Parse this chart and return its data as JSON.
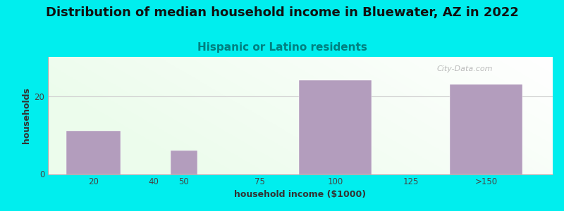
{
  "title": "Distribution of median household income in Bluewater, AZ in 2022",
  "subtitle": "Hispanic or Latino residents",
  "xlabel": "household income ($1000)",
  "ylabel": "households",
  "background_color": "#00EEEE",
  "bar_color": "#b39dbd",
  "categories": [
    "20",
    "40",
    "50",
    "75",
    "100",
    "125",
    ">150"
  ],
  "values": [
    11,
    0,
    6,
    0,
    24,
    0,
    23
  ],
  "bar_centers": [
    20,
    40,
    50,
    75,
    100,
    125,
    150
  ],
  "bar_widths": [
    18,
    18,
    9,
    24,
    24,
    24,
    24
  ],
  "xlim": [
    5,
    172
  ],
  "ylim": [
    0,
    30
  ],
  "yticks": [
    0,
    20
  ],
  "xticks": [
    20,
    40,
    50,
    75,
    100,
    125,
    150
  ],
  "title_fontsize": 13,
  "subtitle_fontsize": 11,
  "subtitle_color": "#008080",
  "axis_label_fontsize": 9,
  "tick_label_fontsize": 8.5,
  "watermark_text": "City-Data.com",
  "watermark_color": "#b0b0b0",
  "grid_color": "#d0d0d0"
}
